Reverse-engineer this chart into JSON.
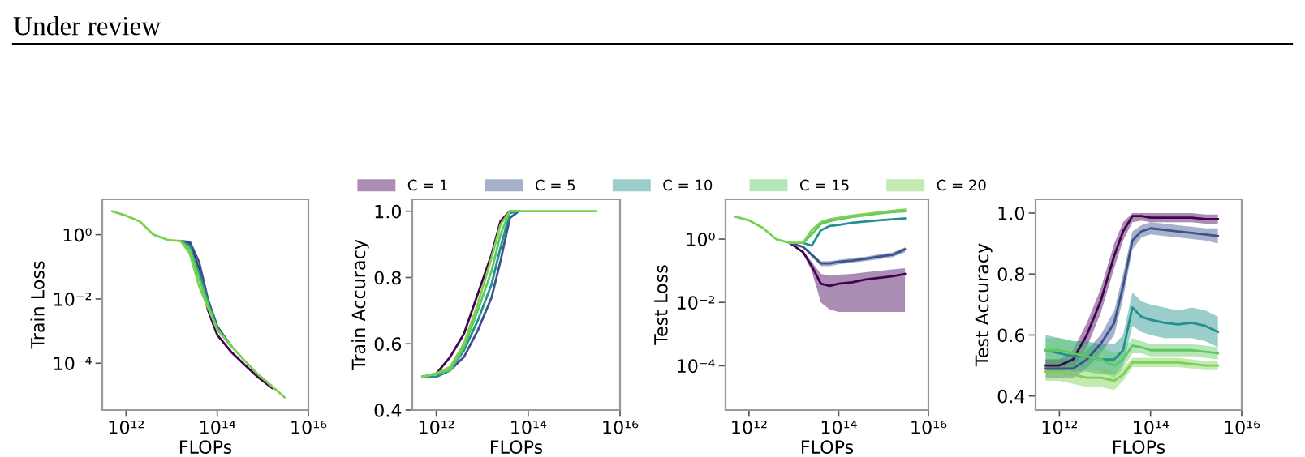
{
  "chart_data": [
    {
      "type": "line",
      "annotations": [
        "Under review"
      ],
      "xlabel": "FLOPs",
      "ylabel": "Train Loss",
      "log": "xy",
      "x": [
        500000000000.0,
        1000000000000.0,
        2000000000000.0,
        4000000000000.0,
        8000000000000.0,
        16000000000000.0,
        25000000000000.0,
        40000000000000.0,
        63000000000000.0,
        100000000000000.0,
        200000000000000.0,
        400000000000000.0,
        800000000000000.0,
        1600000000000000.0,
        3000000000000000.0
      ],
      "xlim": [
        300000000000.0,
        1e+16
      ],
      "xticks": [
        {
          "value": 1000000000000.0,
          "label": "10¹²"
        },
        {
          "value": 100000000000000.0,
          "label": "10¹⁴"
        },
        {
          "value": 1e+16,
          "label": "10¹⁶"
        }
      ],
      "ylim": [
        3.5e-06,
        12.6
      ],
      "yticks": [
        {
          "value": 1,
          "label": "10⁰"
        },
        {
          "value": 0.01,
          "label": "10⁻²"
        },
        {
          "value": 0.0001,
          "label": "10⁻⁴"
        }
      ],
      "series": [
        {
          "color": "#440154",
          "values": [
            null,
            null,
            null,
            null,
            null,
            0.63,
            0.56,
            0.08,
            0.0044,
            0.00076,
            0.00023,
            8.9e-05,
            3.6e-05,
            1.7e-05,
            null
          ]
        },
        {
          "color": "#3b528b",
          "values": [
            null,
            null,
            null,
            null,
            null,
            0.63,
            0.6,
            0.14,
            0.0094,
            0.0014,
            0.00035,
            null,
            null,
            null,
            null
          ]
        },
        {
          "color": "#21918c",
          "values": [
            null,
            null,
            null,
            null,
            null,
            0.63,
            0.45,
            0.066,
            0.0078,
            0.00125,
            0.00035,
            null,
            null,
            null,
            null
          ]
        },
        {
          "color": "#5ec962",
          "values": [
            null,
            null,
            null,
            null,
            null,
            0.63,
            0.35,
            0.045,
            0.0064,
            0.0011,
            0.00035,
            null,
            null,
            null,
            null
          ]
        },
        {
          "color": "#7ad151",
          "values": [
            5.3,
            3.9,
            2.6,
            1.0,
            0.7,
            0.63,
            0.26,
            0.025,
            0.0053,
            0.0011,
            0.00035,
            0.00012,
            4.4e-05,
            1.9e-05,
            8.7e-06
          ]
        }
      ]
    },
    {
      "type": "line",
      "xlabel": "FLOPs",
      "ylabel": "Train Accuracy",
      "log": "x",
      "legend": "top",
      "x": [
        500000000000.0,
        1000000000000.0,
        2000000000000.0,
        4000000000000.0,
        8000000000000.0,
        16000000000000.0,
        25000000000000.0,
        40000000000000.0,
        63000000000000.0,
        100000000000000.0,
        200000000000000.0,
        400000000000000.0,
        800000000000000.0,
        1600000000000000.0,
        3000000000000000.0
      ],
      "xlim": [
        300000000000.0,
        1e+16
      ],
      "xticks": [
        {
          "value": 1000000000000.0,
          "label": "10¹²"
        },
        {
          "value": 100000000000000.0,
          "label": "10¹⁴"
        },
        {
          "value": 1e+16,
          "label": "10¹⁶"
        }
      ],
      "ylim": [
        0.4,
        1.036
      ],
      "yticks": [
        {
          "value": 0.4,
          "label": "0.4"
        },
        {
          "value": 0.6,
          "label": "0.6"
        },
        {
          "value": 0.8,
          "label": "0.8"
        },
        {
          "value": 1.0,
          "label": "1.0"
        }
      ],
      "series": [
        {
          "name": "C = 1",
          "color": "#440154",
          "values": [
            0.5,
            0.51,
            0.56,
            0.63,
            0.75,
            0.87,
            0.97,
            1.0,
            1.0,
            null,
            null,
            null,
            null,
            null,
            null
          ]
        },
        {
          "name": "C = 5",
          "color": "#3b528b",
          "values": [
            0.5,
            0.5,
            0.52,
            0.56,
            0.64,
            0.74,
            0.85,
            0.98,
            1.0,
            null,
            null,
            null,
            null,
            null,
            null
          ]
        },
        {
          "name": "C = 10",
          "color": "#21918c",
          "values": [
            0.5,
            0.5,
            0.52,
            0.58,
            0.67,
            0.78,
            0.89,
            0.995,
            1.0,
            null,
            null,
            null,
            null,
            null,
            null
          ]
        },
        {
          "name": "C = 15",
          "color": "#5ec962",
          "values": [
            0.5,
            0.51,
            0.52,
            0.59,
            0.7,
            0.82,
            0.93,
            1.0,
            1.0,
            null,
            null,
            null,
            null,
            null,
            null
          ]
        },
        {
          "name": "C = 20",
          "color": "#7ad151",
          "values": [
            0.5,
            0.51,
            0.53,
            0.6,
            0.72,
            0.86,
            0.96,
            1.0,
            1.0,
            1.0,
            1.0,
            1.0,
            1.0,
            1.0,
            1.0
          ]
        }
      ]
    },
    {
      "type": "line",
      "xlabel": "FLOPs",
      "ylabel": "Test Loss",
      "log": "xy",
      "x": [
        500000000000.0,
        1000000000000.0,
        2000000000000.0,
        4000000000000.0,
        8000000000000.0,
        16000000000000.0,
        25000000000000.0,
        40000000000000.0,
        63000000000000.0,
        100000000000000.0,
        200000000000000.0,
        400000000000000.0,
        800000000000000.0,
        1600000000000000.0,
        3000000000000000.0
      ],
      "xlim": [
        300000000000.0,
        1e+16
      ],
      "xticks": [
        {
          "value": 1000000000000.0,
          "label": "10¹²"
        },
        {
          "value": 100000000000000.0,
          "label": "10¹⁴"
        },
        {
          "value": 1e+16,
          "label": "10¹⁶"
        }
      ],
      "ylim": [
        4e-06,
        18
      ],
      "yticks": [
        {
          "value": 1,
          "label": "10⁰"
        },
        {
          "value": 0.01,
          "label": "10⁻²"
        },
        {
          "value": 0.0001,
          "label": "10⁻⁴"
        }
      ],
      "series": [
        {
          "color": "#440154",
          "values": [
            null,
            null,
            null,
            null,
            0.76,
            0.39,
            0.14,
            0.039,
            0.033,
            0.039,
            0.043,
            0.053,
            0.06,
            0.067,
            0.079
          ],
          "lower": [
            null,
            null,
            null,
            null,
            0.76,
            0.35,
            0.1,
            0.01,
            0.006,
            0.005,
            0.005,
            0.005,
            0.005,
            0.005,
            0.005
          ],
          "upper": [
            null,
            null,
            null,
            null,
            0.76,
            0.43,
            0.19,
            0.08,
            0.07,
            0.075,
            0.08,
            0.09,
            0.1,
            0.11,
            0.12
          ]
        },
        {
          "color": "#3b528b",
          "values": [
            null,
            null,
            null,
            null,
            0.76,
            0.57,
            0.32,
            0.17,
            0.17,
            0.19,
            0.21,
            0.24,
            0.28,
            0.32,
            0.47
          ],
          "lower": [
            null,
            null,
            null,
            null,
            0.76,
            0.55,
            0.28,
            0.14,
            0.14,
            0.16,
            0.18,
            0.2,
            0.23,
            0.27,
            0.38
          ],
          "upper": [
            null,
            null,
            null,
            null,
            0.76,
            0.6,
            0.36,
            0.2,
            0.2,
            0.22,
            0.25,
            0.28,
            0.33,
            0.38,
            0.56
          ]
        },
        {
          "color": "#21918c",
          "values": [
            null,
            null,
            null,
            null,
            null,
            0.76,
            0.62,
            1.9,
            2.6,
            2.8,
            3.3,
            3.6,
            3.9,
            4.2,
            4.5
          ]
        },
        {
          "color": "#5ec962",
          "values": [
            null,
            null,
            null,
            null,
            null,
            0.76,
            1.4,
            3.0,
            3.7,
            4.2,
            5.0,
            5.7,
            6.5,
            7.2,
            7.6
          ]
        },
        {
          "color": "#7ad151",
          "values": [
            5.1,
            3.9,
            2.3,
            1.0,
            0.76,
            0.76,
            1.9,
            3.4,
            4.2,
            4.7,
            5.5,
            6.2,
            7.0,
            7.8,
            8.5
          ]
        }
      ]
    },
    {
      "type": "line",
      "xlabel": "FLOPs",
      "ylabel": "Test Accuracy",
      "log": "x",
      "x": [
        500000000000.0,
        1000000000000.0,
        2000000000000.0,
        4000000000000.0,
        8000000000000.0,
        16000000000000.0,
        25000000000000.0,
        40000000000000.0,
        63000000000000.0,
        100000000000000.0,
        200000000000000.0,
        400000000000000.0,
        800000000000000.0,
        1600000000000000.0,
        3000000000000000.0
      ],
      "xlim": [
        300000000000.0,
        1e+16
      ],
      "xticks": [
        {
          "value": 1000000000000.0,
          "label": "10¹²"
        },
        {
          "value": 100000000000000.0,
          "label": "10¹⁴"
        },
        {
          "value": 1e+16,
          "label": "10¹⁶"
        }
      ],
      "ylim": [
        0.354,
        1.045
      ],
      "yticks": [
        {
          "value": 0.4,
          "label": "0.4"
        },
        {
          "value": 0.6,
          "label": "0.6"
        },
        {
          "value": 0.8,
          "label": "0.8"
        },
        {
          "value": 1.0,
          "label": "1.0"
        }
      ],
      "series": [
        {
          "color": "#440154",
          "values": [
            0.5,
            0.5,
            0.52,
            0.6,
            0.71,
            0.86,
            0.94,
            0.99,
            0.99,
            0.985,
            0.985,
            0.985,
            0.985,
            0.98,
            0.98
          ],
          "lower": [
            0.48,
            0.48,
            0.49,
            0.56,
            0.67,
            0.82,
            0.91,
            0.97,
            0.975,
            0.97,
            0.97,
            0.97,
            0.97,
            0.965,
            0.965
          ],
          "upper": [
            0.52,
            0.52,
            0.55,
            0.64,
            0.75,
            0.9,
            0.97,
            1.0,
            1.0,
            1.0,
            1.0,
            1.0,
            1.0,
            0.995,
            0.995
          ]
        },
        {
          "color": "#3b528b",
          "values": [
            0.49,
            0.49,
            0.49,
            0.52,
            0.57,
            0.64,
            0.76,
            0.91,
            0.94,
            0.95,
            0.945,
            0.94,
            0.935,
            0.93,
            0.925
          ],
          "lower": [
            0.46,
            0.46,
            0.46,
            0.49,
            0.54,
            0.6,
            0.72,
            0.88,
            0.92,
            0.93,
            0.925,
            0.92,
            0.915,
            0.91,
            0.9
          ],
          "upper": [
            0.52,
            0.52,
            0.52,
            0.55,
            0.6,
            0.68,
            0.8,
            0.94,
            0.96,
            0.97,
            0.965,
            0.96,
            0.955,
            0.95,
            0.95
          ]
        },
        {
          "color": "#21918c",
          "values": [
            0.55,
            0.54,
            0.53,
            0.53,
            0.52,
            0.52,
            0.55,
            0.69,
            0.66,
            0.65,
            0.64,
            0.635,
            0.64,
            0.63,
            0.61
          ],
          "lower": [
            0.5,
            0.49,
            0.48,
            0.48,
            0.47,
            0.47,
            0.5,
            0.63,
            0.61,
            0.6,
            0.59,
            0.59,
            0.59,
            0.58,
            0.56
          ],
          "upper": [
            0.6,
            0.59,
            0.58,
            0.58,
            0.57,
            0.57,
            0.6,
            0.74,
            0.71,
            0.7,
            0.69,
            0.68,
            0.69,
            0.68,
            0.66
          ]
        },
        {
          "color": "#5ec962",
          "values": [
            0.55,
            0.55,
            0.54,
            0.53,
            0.52,
            0.5,
            0.52,
            0.565,
            0.56,
            0.55,
            0.55,
            0.55,
            0.55,
            0.545,
            0.54
          ],
          "lower": [
            0.51,
            0.51,
            0.5,
            0.49,
            0.48,
            0.46,
            0.49,
            0.54,
            0.54,
            0.53,
            0.53,
            0.53,
            0.53,
            0.525,
            0.52
          ],
          "upper": [
            0.59,
            0.59,
            0.58,
            0.57,
            0.56,
            0.54,
            0.55,
            0.59,
            0.58,
            0.57,
            0.57,
            0.57,
            0.57,
            0.565,
            0.56
          ]
        },
        {
          "color": "#7ad151",
          "values": [
            0.48,
            0.48,
            0.47,
            0.46,
            0.46,
            0.45,
            0.47,
            0.51,
            0.51,
            0.51,
            0.51,
            0.51,
            0.505,
            0.5,
            0.5
          ],
          "lower": [
            0.45,
            0.45,
            0.44,
            0.43,
            0.43,
            0.42,
            0.45,
            0.495,
            0.495,
            0.495,
            0.495,
            0.495,
            0.49,
            0.485,
            0.485
          ],
          "upper": [
            0.51,
            0.51,
            0.5,
            0.49,
            0.49,
            0.48,
            0.49,
            0.525,
            0.525,
            0.525,
            0.525,
            0.525,
            0.52,
            0.515,
            0.515
          ]
        }
      ]
    }
  ]
}
